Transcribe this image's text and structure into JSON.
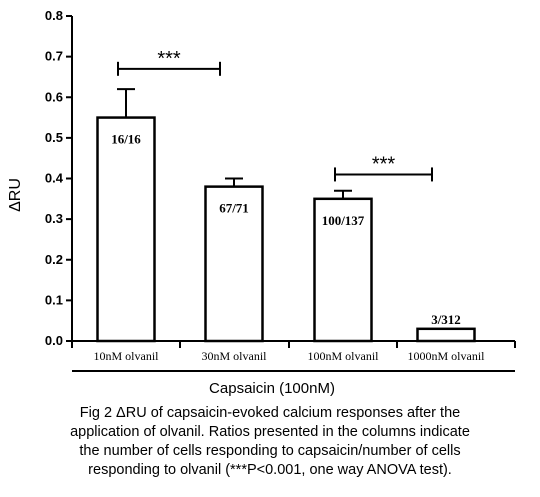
{
  "chart_data": {
    "type": "bar",
    "ylabel": "ΔRU",
    "ylim": [
      0,
      0.8
    ],
    "yticks": [
      "0.0",
      "0.1",
      "0.2",
      "0.3",
      "0.4",
      "0.5",
      "0.6",
      "0.7",
      "0.8"
    ],
    "ytick_values": [
      0,
      0.1,
      0.2,
      0.3,
      0.4,
      0.5,
      0.6,
      0.7,
      0.8
    ],
    "categories": [
      "10nM olvanil",
      "30nM olvanil",
      "100nM olvanil",
      "1000nM olvanil"
    ],
    "values": [
      0.55,
      0.38,
      0.35,
      0.03
    ],
    "errors": [
      0.07,
      0.02,
      0.02,
      0.0
    ],
    "bar_labels": [
      "16/16",
      "67/71",
      "100/137",
      "3/312"
    ],
    "x_group_label": "Capsaicin (100nM)",
    "significance": [
      {
        "from": 0,
        "to": 1,
        "label": "***",
        "y": 0.67
      },
      {
        "from": 2,
        "to": 3,
        "label": "***",
        "y": 0.41
      }
    ]
  },
  "caption_lines": [
    "Fig 2 ΔRU of capsaicin-evoked calcium responses after the",
    "application of olvanil. Ratios presented in the columns indicate",
    "the number of cells responding to capsaicin/number of cells",
    "responding to olvanil (***P<0.001, one way ANOVA test)."
  ]
}
